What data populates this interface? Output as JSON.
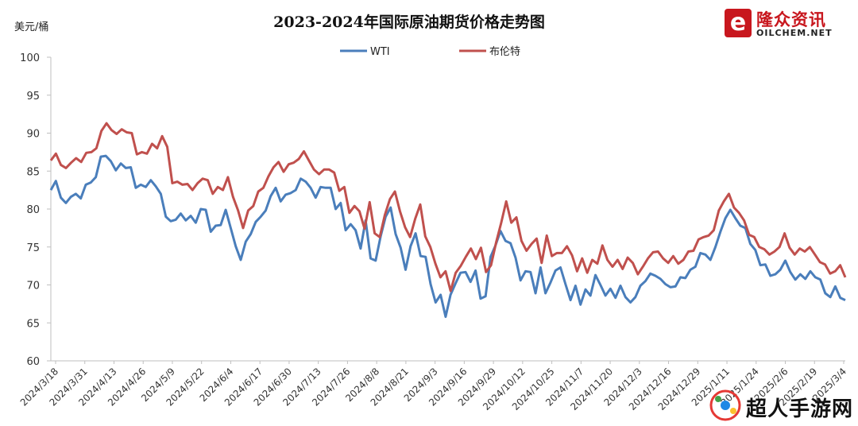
{
  "logo": {
    "mark": "e",
    "name_cn": "隆众资讯",
    "name_en": "OILCHEM.NET"
  },
  "watermark": {
    "text": "超人手游网"
  },
  "chart_data": {
    "type": "line",
    "title": "2023-2024年国际原油期货价格走势图",
    "ylabel": "美元/桶",
    "xlabel": "",
    "ylim": [
      60,
      100
    ],
    "yticks": [
      60,
      65,
      70,
      75,
      80,
      85,
      90,
      95,
      100
    ],
    "legend_position": "top-center",
    "grid": false,
    "x_tick_labels": [
      "2024/3/18",
      "2024/3/31",
      "2024/4/13",
      "2024/4/26",
      "2024/5/9",
      "2024/5/22",
      "2024/6/4",
      "2024/6/17",
      "2024/6/30",
      "2024/7/13",
      "2024/7/26",
      "2024/8/8",
      "2024/8/21",
      "2024/9/3",
      "2024/9/16",
      "2024/9/29",
      "2024/10/12",
      "2024/10/25",
      "2024/11/7",
      "2024/11/20",
      "2024/12/3",
      "2024/12/16",
      "2024/12/29",
      "2025/1/11",
      "2025/1/24",
      "2025/2/6",
      "2025/2/19",
      "2025/3/4"
    ],
    "series": [
      {
        "name": "WTI",
        "color": "#4a7ebb",
        "values": [
          82.5,
          83.7,
          81.5,
          80.8,
          81.6,
          82.0,
          81.4,
          83.2,
          83.5,
          84.2,
          86.9,
          87.0,
          86.3,
          85.1,
          86.0,
          85.4,
          85.5,
          82.8,
          83.2,
          82.9,
          83.8,
          83.0,
          82.0,
          79.0,
          78.4,
          78.6,
          79.4,
          78.5,
          79.1,
          78.2,
          80.0,
          79.9,
          77.0,
          77.8,
          77.9,
          79.9,
          77.5,
          75.1,
          73.3,
          75.7,
          76.7,
          78.3,
          79.0,
          79.8,
          81.7,
          82.8,
          81.0,
          81.9,
          82.1,
          82.5,
          84.0,
          83.6,
          82.8,
          81.5,
          82.9,
          82.8,
          82.8,
          80.0,
          80.8,
          77.2,
          78.0,
          77.2,
          74.8,
          78.5,
          73.5,
          73.2,
          76.4,
          79.0,
          80.2,
          76.7,
          74.9,
          72.0,
          75.1,
          76.8,
          73.8,
          73.7,
          70.1,
          67.7,
          68.7,
          65.8,
          68.7,
          70.2,
          71.6,
          71.7,
          70.4,
          71.9,
          68.2,
          68.5,
          73.7,
          75.2,
          77.1,
          75.8,
          75.5,
          73.6,
          70.6,
          71.8,
          71.7,
          68.9,
          72.3,
          68.9,
          70.3,
          71.9,
          72.3,
          70.1,
          68.0,
          69.9,
          67.4,
          69.4,
          68.6,
          71.3,
          70.0,
          68.6,
          69.5,
          68.3,
          69.9,
          68.4,
          67.7,
          68.4,
          69.9,
          70.5,
          71.5,
          71.2,
          70.8,
          70.1,
          69.7,
          69.8,
          71.0,
          70.9,
          72.0,
          72.4,
          74.2,
          74.0,
          73.3,
          75.0,
          77.0,
          78.8,
          79.9,
          78.8,
          77.8,
          77.5,
          75.4,
          74.6,
          72.6,
          72.7,
          71.2,
          71.4,
          72.0,
          73.2,
          71.7,
          70.7,
          71.4,
          70.8,
          71.8,
          71.0,
          70.7,
          68.9,
          68.4,
          69.8,
          68.3,
          68.0
        ]
      },
      {
        "name": "布伦特",
        "color": "#c0504d",
        "values": [
          86.4,
          87.3,
          85.8,
          85.4,
          86.1,
          86.7,
          86.2,
          87.4,
          87.5,
          88.0,
          90.3,
          91.3,
          90.4,
          89.9,
          90.5,
          90.1,
          90.0,
          87.2,
          87.5,
          87.3,
          88.6,
          88.0,
          89.6,
          88.2,
          83.4,
          83.6,
          83.2,
          83.3,
          82.5,
          83.4,
          84.0,
          83.8,
          82.0,
          82.9,
          82.5,
          84.2,
          81.6,
          79.8,
          77.5,
          79.8,
          80.4,
          82.3,
          82.8,
          84.3,
          85.5,
          86.2,
          84.9,
          85.9,
          86.1,
          86.6,
          87.6,
          86.4,
          85.2,
          84.6,
          85.2,
          85.2,
          84.8,
          82.4,
          82.9,
          79.5,
          80.4,
          79.7,
          77.4,
          80.9,
          76.8,
          76.3,
          79.2,
          81.3,
          82.3,
          79.7,
          77.6,
          76.3,
          78.7,
          80.6,
          76.4,
          75.0,
          72.8,
          71.0,
          71.8,
          69.2,
          71.6,
          72.5,
          73.7,
          74.8,
          73.4,
          74.9,
          71.7,
          72.6,
          75.6,
          78.2,
          81.0,
          78.2,
          78.9,
          75.8,
          74.5,
          75.4,
          76.1,
          72.9,
          76.5,
          73.8,
          74.2,
          74.2,
          75.1,
          73.9,
          71.8,
          73.5,
          71.6,
          73.3,
          72.8,
          75.2,
          73.3,
          72.4,
          73.3,
          72.1,
          73.6,
          72.9,
          71.4,
          72.4,
          73.5,
          74.3,
          74.4,
          73.5,
          72.9,
          73.8,
          72.8,
          73.3,
          74.4,
          74.5,
          76.0,
          76.3,
          76.5,
          77.2,
          79.8,
          81.0,
          82.0,
          80.2,
          79.5,
          78.5,
          76.6,
          76.3,
          75.0,
          74.7,
          74.0,
          74.4,
          75.0,
          76.8,
          74.9,
          74.0,
          74.8,
          74.4,
          75.0,
          74.0,
          73.0,
          72.7,
          71.5,
          71.8,
          72.6,
          71.0
        ]
      }
    ]
  }
}
